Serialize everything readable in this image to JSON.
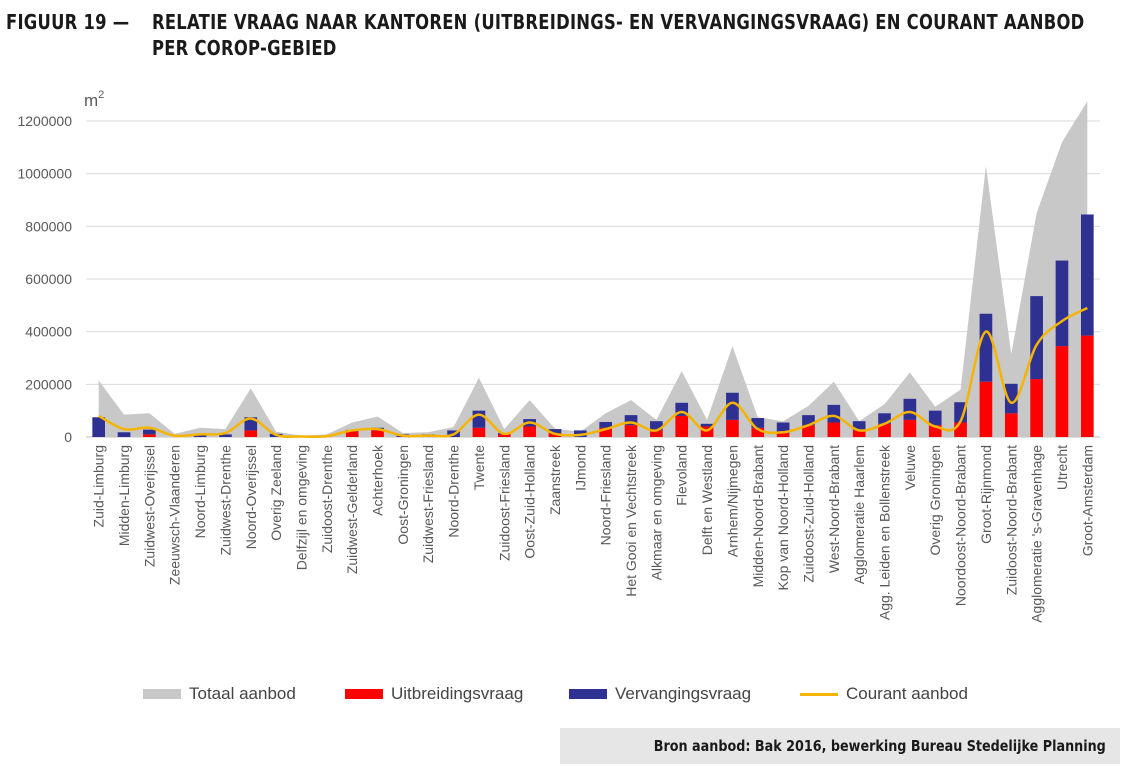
{
  "figure": {
    "label": "FIGUUR 19 —",
    "title_line1": "RELATIE VRAAG NAAR KANTOREN (UITBREIDINGS- EN VERVANGINGSVRAAG) EN COURANT AANBOD",
    "title_line2": "PER COROP-GEBIED"
  },
  "source": "Bron aanbod: Bak 2016, bewerking Bureau Stedelijke Planning",
  "colors": {
    "totaal": "#c8c8c8",
    "uitbreiding": "#ff0000",
    "vervanging": "#2e3192",
    "courant": "#f5b400",
    "grid": "#d9d9d9",
    "axis_text": "#595959"
  },
  "chart_data": {
    "type": "bar",
    "ylabel": "m",
    "ylabel_sup": "2",
    "ylim": [
      0,
      1200000
    ],
    "yticks": [
      0,
      200000,
      400000,
      600000,
      800000,
      1000000,
      1200000
    ],
    "ytick_labels": [
      "0",
      "200000",
      "400000",
      "600000",
      "800000",
      "1000000",
      "1200000"
    ],
    "grid": true,
    "legend_position": "bottom",
    "categories": [
      "Zuid-Limburg",
      "Midden-Limburg",
      "Zuidwest-Overijssel",
      "Zeeuwsch-Vlaanderen",
      "Noord-Limburg",
      "Zuidwest-Drenthe",
      "Noord-Overijssel",
      "Overig Zeeland",
      "Delfzijl en omgeving",
      "Zuidoost-Drenthe",
      "Zuidwest-Gelderland",
      "Achterhoek",
      "Oost-Groningen",
      "Zuidwest-Friesland",
      "Noord-Drenthe",
      "Twente",
      "Zuidoost-Friesland",
      "Oost-Zuid-Holland",
      "Zaanstreek",
      "IJmond",
      "Noord-Friesland",
      "Het Gooi en Vechtstreek",
      "Alkmaar en omgeving",
      "Flevoland",
      "Delft en Westland",
      "Arnhem/Nijmegen",
      "Midden-Noord-Brabant",
      "Kop van Noord-Holland",
      "Zuidoost-Zuid-Holland",
      "West-Noord-Brabant",
      "Agglomeratie Haarlem",
      "Agg. Leiden en Bollenstreek",
      "Veluwe",
      "Overig Groningen",
      "Noordoost-Noord-Brabant",
      "Groot-Rijnmond",
      "Zuidoost-Noord-Brabant",
      "Agglomeratie 's-Gravenhage",
      "Utrecht",
      "Groot-Amsterdam"
    ],
    "series": [
      {
        "name": "Totaal aanbod",
        "type": "area",
        "values": [
          215000,
          85000,
          90000,
          12000,
          35000,
          30000,
          185000,
          20000,
          5000,
          10000,
          55000,
          78000,
          15000,
          18000,
          38000,
          225000,
          30000,
          140000,
          32000,
          20000,
          90000,
          140000,
          65000,
          250000,
          65000,
          345000,
          75000,
          60000,
          118000,
          210000,
          60000,
          125000,
          245000,
          115000,
          180000,
          1030000,
          315000,
          850000,
          1120000,
          1275000
        ]
      },
      {
        "name": "Uitbreidingsvraag",
        "type": "bar",
        "stack": "vraag",
        "values": [
          0,
          0,
          10000,
          0,
          0,
          0,
          25000,
          0,
          0,
          0,
          22000,
          25000,
          0,
          0,
          0,
          35000,
          10000,
          40000,
          15000,
          0,
          35000,
          45000,
          25000,
          80000,
          40000,
          65000,
          35000,
          15000,
          45000,
          55000,
          25000,
          50000,
          65000,
          45000,
          55000,
          210000,
          90000,
          220000,
          345000,
          385000
        ]
      },
      {
        "name": "Vervangingsvraag",
        "type": "bar",
        "stack": "vraag",
        "values": [
          75000,
          18000,
          18000,
          0,
          10000,
          10000,
          50000,
          12000,
          0,
          0,
          5000,
          10000,
          10000,
          10000,
          25000,
          65000,
          5000,
          28000,
          15000,
          25000,
          22000,
          38000,
          35000,
          50000,
          10000,
          103000,
          37000,
          40000,
          38000,
          67000,
          35000,
          40000,
          80000,
          55000,
          77000,
          258000,
          112000,
          315000,
          325000,
          460000
        ]
      },
      {
        "name": "Courant aanbod",
        "type": "line",
        "values": [
          80000,
          30000,
          35000,
          5000,
          10000,
          15000,
          70000,
          8000,
          2000,
          3000,
          25000,
          30000,
          5000,
          5000,
          10000,
          85000,
          12000,
          55000,
          12000,
          8000,
          30000,
          55000,
          25000,
          95000,
          25000,
          130000,
          30000,
          18000,
          45000,
          80000,
          25000,
          50000,
          95000,
          40000,
          60000,
          400000,
          130000,
          350000,
          440000,
          490000
        ]
      }
    ]
  }
}
